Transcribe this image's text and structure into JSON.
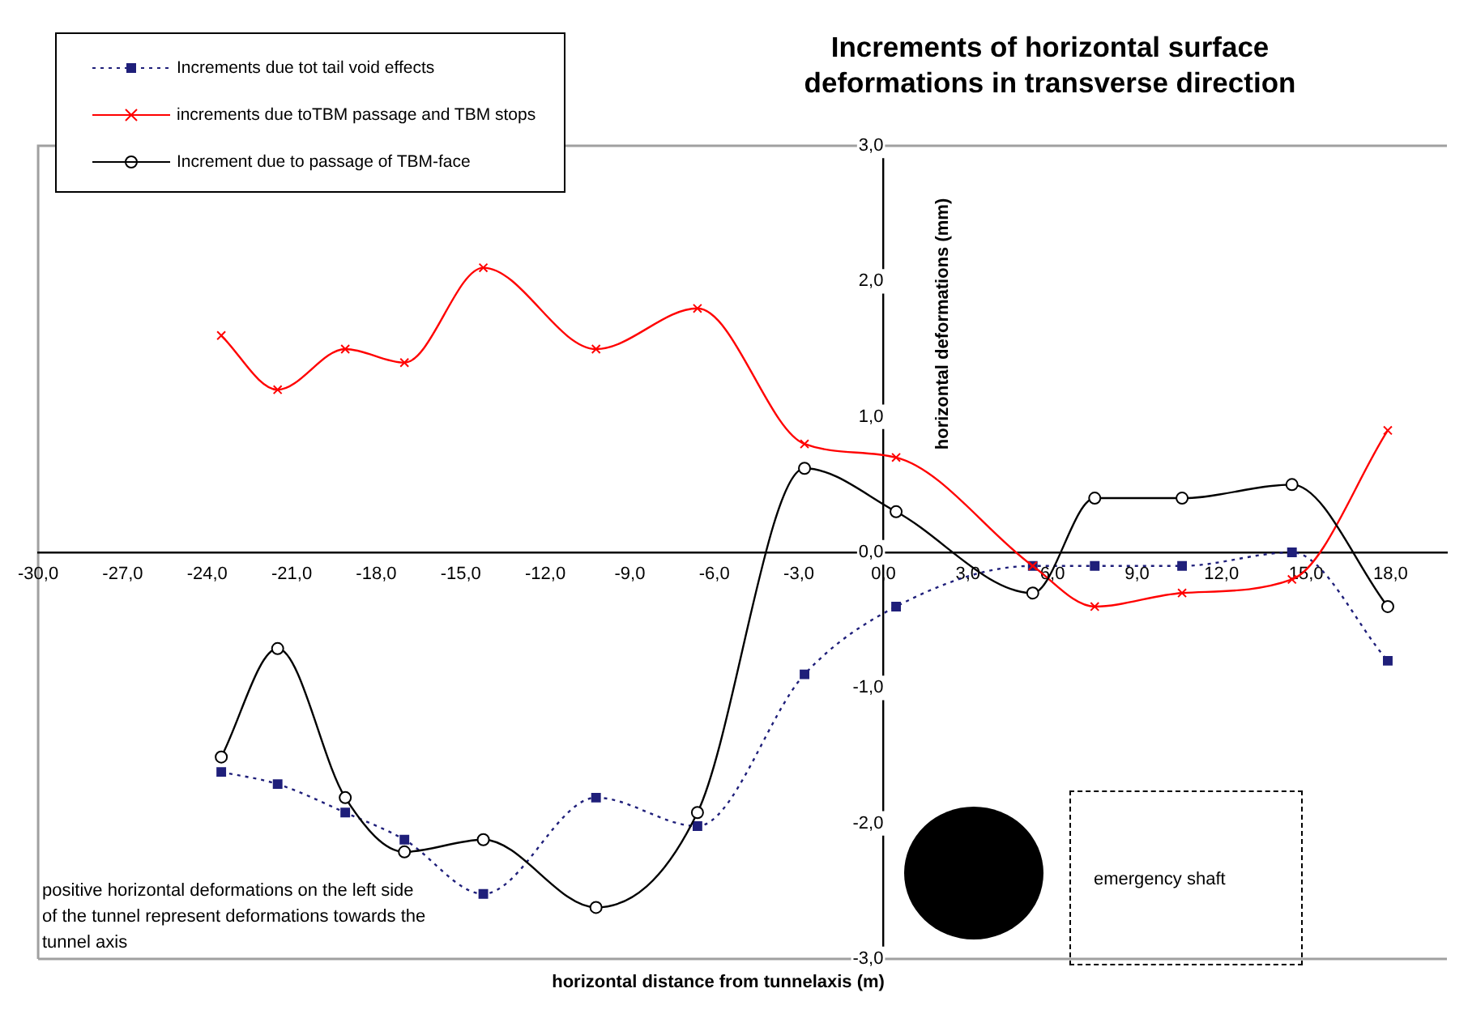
{
  "chart_data": {
    "type": "line",
    "title": "Increments of horizontal surface deformations in transverse direction",
    "xlabel": "horizontal distance from tunnelaxis (m)",
    "ylabel": "horizontal deformations (mm)",
    "annotations": [
      "positive horizontal deformations on the left side of the tunnel represent deformations towards the tunnel axis",
      "emergency shaft"
    ],
    "x": [
      -23.5,
      -21.5,
      -19.1,
      -17.0,
      -14.2,
      -10.2,
      -6.6,
      -2.8,
      0.45,
      5.3,
      7.5,
      10.6,
      14.5,
      17.9
    ],
    "series": [
      {
        "name": "Increments due tot tail void effects",
        "color": "#1f1f7a",
        "marker": "square",
        "line_style": "dotted",
        "values": [
          -1.62,
          -1.71,
          -1.92,
          -2.12,
          -2.52,
          -1.81,
          -2.02,
          -0.9,
          -0.4,
          -0.1,
          -0.1,
          -0.1,
          0.0,
          -0.8
        ]
      },
      {
        "name": "increments due toTBM passage and TBM stops",
        "color": "#ff0000",
        "marker": "cross",
        "line_style": "solid",
        "values": [
          1.6,
          1.2,
          1.5,
          1.4,
          2.1,
          1.5,
          1.8,
          0.8,
          0.7,
          -0.1,
          -0.4,
          -0.3,
          -0.2,
          0.9
        ]
      },
      {
        "name": "Increment due to passage of TBM-face",
        "color": "#000000",
        "marker": "circle",
        "line_style": "solid",
        "values": [
          -1.51,
          -0.71,
          -1.81,
          -2.21,
          -2.12,
          -2.62,
          -1.92,
          0.62,
          0.3,
          -0.3,
          0.4,
          0.4,
          0.5,
          -0.4
        ]
      }
    ],
    "xlim": [
      -30,
      20
    ],
    "xticks": [
      {
        "value": -30,
        "label": "-30,0"
      },
      {
        "value": -27,
        "label": "-27,0"
      },
      {
        "value": -24,
        "label": "-24,0"
      },
      {
        "value": -21,
        "label": "-21,0"
      },
      {
        "value": -18,
        "label": "-18,0"
      },
      {
        "value": -15,
        "label": "-15,0"
      },
      {
        "value": -12,
        "label": "-12,0"
      },
      {
        "value": -9,
        "label": "-9,0"
      },
      {
        "value": -6,
        "label": "-6,0"
      },
      {
        "value": -3,
        "label": "-3,0"
      },
      {
        "value": 0,
        "label": "0,0"
      },
      {
        "value": 3,
        "label": "3,0"
      },
      {
        "value": 6,
        "label": "6,0"
      },
      {
        "value": 9,
        "label": "9,0"
      },
      {
        "value": 12,
        "label": "12,0"
      },
      {
        "value": 15,
        "label": "15,0"
      },
      {
        "value": 18,
        "label": "18,0"
      }
    ],
    "ylim": [
      -3,
      3
    ],
    "yticks": [
      {
        "value": -3,
        "label": "-3,0"
      },
      {
        "value": -2,
        "label": "-2,0"
      },
      {
        "value": -1,
        "label": "-1,0"
      },
      {
        "value": 0,
        "label": "0,0"
      },
      {
        "value": 1,
        "label": "1,0"
      },
      {
        "value": 2,
        "label": "2,0"
      },
      {
        "value": 3,
        "label": "3,0"
      }
    ],
    "grid": false,
    "legend": "top left"
  }
}
